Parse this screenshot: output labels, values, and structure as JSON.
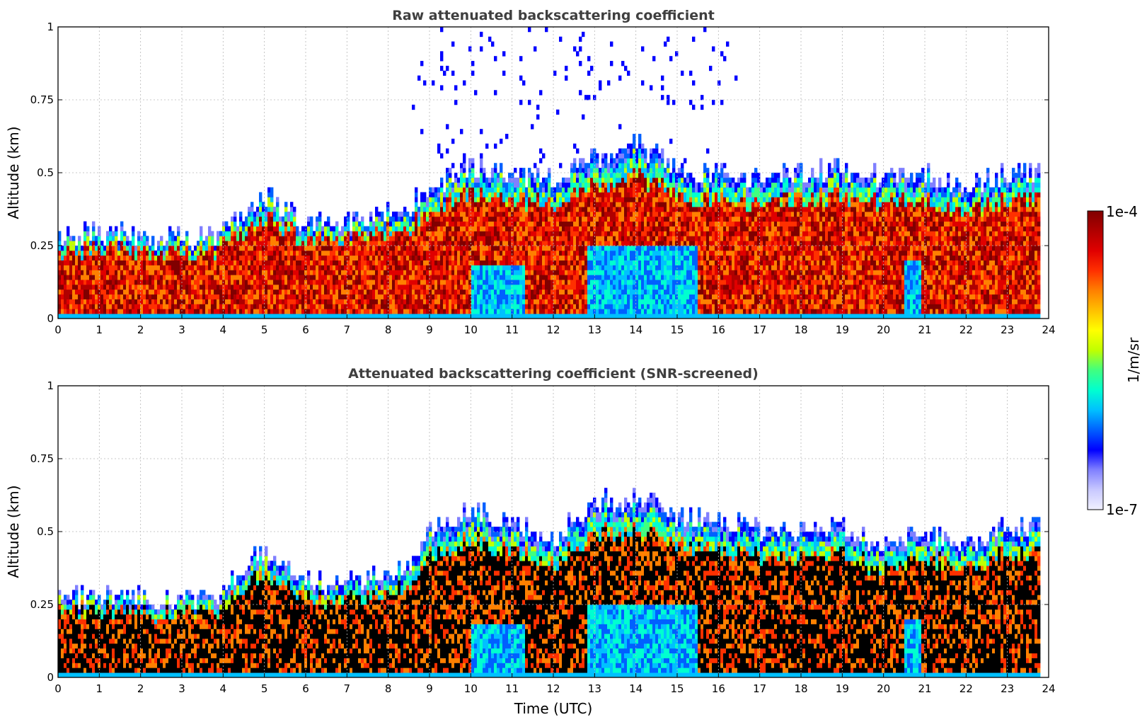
{
  "chart_data": [
    {
      "type": "heatmap",
      "title": "Raw attenuated backscattering coefficient",
      "xlabel": "",
      "ylabel": "Altitude (km)",
      "xlim": [
        0,
        24
      ],
      "ylim": [
        0,
        1
      ],
      "x_ticks": [
        "0",
        "1",
        "2",
        "3",
        "4",
        "5",
        "6",
        "7",
        "8",
        "9",
        "10",
        "11",
        "12",
        "13",
        "14",
        "15",
        "16",
        "17",
        "18",
        "19",
        "20",
        "21",
        "22",
        "23",
        "24"
      ],
      "y_ticks": [
        "0",
        "0.25",
        "0.5",
        "0.75",
        "1"
      ],
      "grid": true,
      "screened": false,
      "layer_top_km": [
        [
          0,
          0.28
        ],
        [
          1,
          0.3
        ],
        [
          2,
          0.28
        ],
        [
          3,
          0.27
        ],
        [
          3.9,
          0.29
        ],
        [
          4,
          0.32
        ],
        [
          5,
          0.42
        ],
        [
          5.5,
          0.38
        ],
        [
          6,
          0.33
        ],
        [
          6.5,
          0.32
        ],
        [
          7,
          0.33
        ],
        [
          7.5,
          0.34
        ],
        [
          8,
          0.37
        ],
        [
          8.5,
          0.38
        ],
        [
          9,
          0.45
        ],
        [
          10,
          0.52
        ],
        [
          11,
          0.5
        ],
        [
          12,
          0.48
        ],
        [
          13,
          0.55
        ],
        [
          14,
          0.6
        ],
        [
          15,
          0.52
        ],
        [
          16,
          0.5
        ],
        [
          17,
          0.48
        ],
        [
          18,
          0.5
        ],
        [
          19,
          0.52
        ],
        [
          20,
          0.48
        ],
        [
          21,
          0.5
        ],
        [
          22,
          0.45
        ],
        [
          23,
          0.5
        ],
        [
          23.8,
          0.5
        ]
      ]
    },
    {
      "type": "heatmap",
      "title": "Attenuated backscattering coefficient (SNR-screened)",
      "xlabel": "Time (UTC)",
      "ylabel": "Altitude (km)",
      "xlim": [
        0,
        24
      ],
      "ylim": [
        0,
        1
      ],
      "x_ticks": [
        "0",
        "1",
        "2",
        "3",
        "4",
        "5",
        "6",
        "7",
        "8",
        "9",
        "10",
        "11",
        "12",
        "13",
        "14",
        "15",
        "16",
        "17",
        "18",
        "19",
        "20",
        "21",
        "22",
        "23",
        "24"
      ],
      "y_ticks": [
        "0",
        "0.25",
        "0.5",
        "0.75",
        "1"
      ],
      "grid": true,
      "screened": true,
      "layer_top_km": [
        [
          0,
          0.27
        ],
        [
          1,
          0.29
        ],
        [
          2,
          0.28
        ],
        [
          3,
          0.26
        ],
        [
          3.9,
          0.29
        ],
        [
          4,
          0.31
        ],
        [
          5,
          0.44
        ],
        [
          5.5,
          0.4
        ],
        [
          6,
          0.34
        ],
        [
          6.5,
          0.32
        ],
        [
          7,
          0.33
        ],
        [
          7.5,
          0.35
        ],
        [
          8,
          0.37
        ],
        [
          8.5,
          0.38
        ],
        [
          9,
          0.5
        ],
        [
          10,
          0.58
        ],
        [
          11,
          0.52
        ],
        [
          12,
          0.48
        ],
        [
          13,
          0.6
        ],
        [
          14,
          0.62
        ],
        [
          15,
          0.55
        ],
        [
          16,
          0.55
        ],
        [
          17,
          0.5
        ],
        [
          18,
          0.5
        ],
        [
          19,
          0.52
        ],
        [
          20,
          0.45
        ],
        [
          21,
          0.5
        ],
        [
          22,
          0.45
        ],
        [
          23,
          0.52
        ],
        [
          23.8,
          0.52
        ]
      ]
    }
  ],
  "colorbar": {
    "label": "1/m/sr",
    "max_label": "1e-4",
    "min_label": "1e-7",
    "colors": [
      "#f0f0ff",
      "#c8c8ff",
      "#8080ff",
      "#0000ff",
      "#0060ff",
      "#00c0ff",
      "#00ffd0",
      "#40ff80",
      "#c0ff00",
      "#ffff00",
      "#ffc000",
      "#ff8000",
      "#ff3000",
      "#e00000",
      "#b00000",
      "#800000"
    ]
  }
}
